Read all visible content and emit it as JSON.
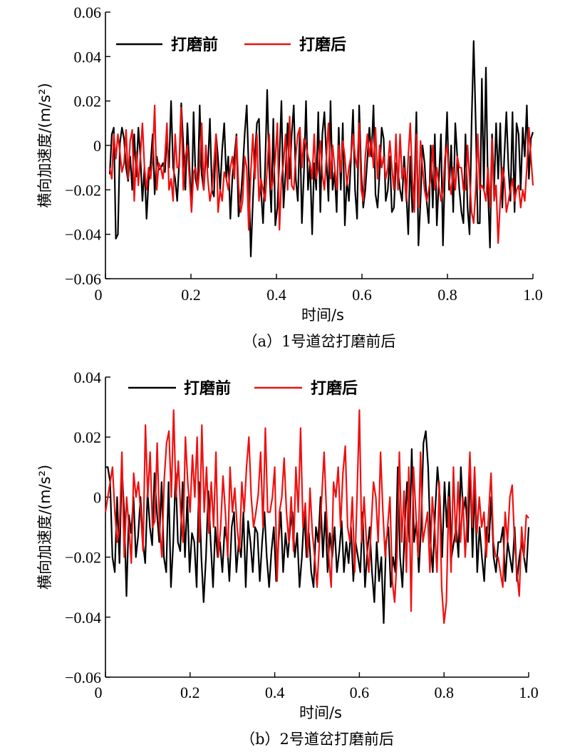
{
  "chart_data": [
    {
      "type": "line",
      "caption": "（a）1号道岔打磨前后",
      "xlabel": "时间/s",
      "ylabel": "横向加速度/(m/s²)",
      "xlim": [
        0,
        1.0
      ],
      "ylim": [
        -0.06,
        0.06
      ],
      "xticks": [
        "0",
        "0.2",
        "0.4",
        "0.6",
        "0.8",
        "1.0"
      ],
      "yticks": [
        "0.06",
        "0.04",
        "0.02",
        "0",
        "−0.02",
        "−0.04",
        "−0.06"
      ],
      "grid": false,
      "legend_position": "top",
      "series": [
        {
          "name": "打磨前",
          "color": "#000000",
          "x_start": 0.01,
          "x_end": 1.0,
          "values": [
            -0.013,
            0.005,
            0.008,
            -0.042,
            -0.04,
            0.001,
            0.008,
            0.003,
            -0.01,
            -0.016,
            -0.005,
            -0.02,
            0.005,
            -0.014,
            0.008,
            -0.005,
            -0.025,
            -0.01,
            -0.033,
            -0.016,
            -0.008,
            0.005,
            -0.022,
            -0.005,
            -0.011,
            -0.01,
            -0.008,
            -0.012,
            0.004,
            -0.01,
            0.02,
            -0.01,
            -0.015,
            -0.025,
            -0.007,
            0.019,
            0.0,
            -0.02,
            0.01,
            -0.01,
            -0.028,
            0.015,
            -0.015,
            -0.02,
            0.018,
            -0.013,
            -0.02,
            -0.005,
            -0.01,
            0.012,
            -0.02,
            -0.023,
            0.005,
            -0.006,
            -0.02,
            -0.002,
            0.01,
            -0.015,
            -0.005,
            -0.033,
            -0.014,
            -0.005,
            0.005,
            -0.032,
            -0.025,
            -0.012,
            0.005,
            0.018,
            -0.011,
            -0.05,
            -0.025,
            -0.005,
            0.01,
            0.012,
            -0.02,
            -0.035,
            -0.01,
            0.025,
            -0.01,
            -0.03,
            0.012,
            -0.036,
            -0.028,
            -0.006,
            0.02,
            -0.028,
            -0.012,
            0.01,
            -0.015,
            0.005,
            0.018,
            -0.015,
            -0.025,
            0.008,
            -0.035,
            -0.012,
            0.02,
            -0.02,
            -0.008,
            -0.04,
            -0.008,
            -0.02,
            0.015,
            -0.03,
            0.005,
            0.015,
            -0.006,
            -0.025,
            0.02,
            -0.02,
            -0.012,
            -0.03,
            0.008,
            -0.02,
            0.01,
            -0.036,
            -0.015,
            -0.025,
            -0.006,
            0.016,
            -0.02,
            -0.033,
            0.018,
            -0.012,
            -0.028,
            -0.02,
            -0.006,
            0.008,
            -0.005,
            0.018,
            -0.022,
            -0.028,
            -0.012,
            0.008,
            0.003,
            -0.025,
            -0.02,
            -0.005,
            -0.03,
            -0.028,
            -0.008,
            -0.012,
            -0.02,
            -0.025,
            -0.005,
            -0.02,
            -0.04,
            -0.005,
            -0.03,
            -0.02,
            0.015,
            -0.045,
            -0.025,
            0.0,
            -0.008,
            -0.025,
            -0.035,
            0.0,
            -0.028,
            0.005,
            -0.036,
            -0.015,
            0.005,
            -0.045,
            -0.01,
            0.015,
            -0.02,
            0.0,
            -0.03,
            0.01,
            -0.005,
            -0.02,
            -0.03,
            -0.035,
            0.005,
            -0.028,
            -0.04,
            0.01,
            0.047,
            0.01,
            -0.035,
            -0.035,
            0.03,
            -0.02,
            0.035,
            -0.02,
            -0.046,
            0.005,
            -0.02,
            0.01,
            -0.015,
            0.01,
            -0.028,
            -0.005,
            0.015,
            -0.01,
            -0.025,
            0.015,
            -0.03,
            0.01,
            0.005,
            -0.02,
            0.008,
            -0.005,
            0.018,
            -0.015,
            0.003,
            0.006
          ]
        },
        {
          "name": "打磨后",
          "color": "#ee1111",
          "x_start": 0.01,
          "x_end": 1.0,
          "values": [
            -0.01,
            -0.015,
            0.005,
            -0.006,
            0.005,
            -0.003,
            -0.012,
            -0.008,
            0.007,
            -0.015,
            0.002,
            0.007,
            -0.025,
            -0.003,
            -0.018,
            -0.005,
            0.01,
            -0.01,
            -0.02,
            -0.01,
            -0.015,
            -0.005,
            0.018,
            -0.02,
            -0.008,
            -0.01,
            -0.015,
            -0.005,
            0.01,
            -0.02,
            -0.015,
            -0.025,
            0.005,
            -0.01,
            -0.01,
            0.017,
            -0.02,
            -0.005,
            0.0,
            -0.015,
            -0.03,
            -0.012,
            -0.01,
            -0.02,
            -0.01,
            0.01,
            -0.02,
            0.0,
            -0.015,
            -0.025,
            -0.02,
            -0.008,
            0.005,
            -0.03,
            -0.02,
            -0.025,
            -0.012,
            -0.015,
            -0.02,
            -0.01,
            -0.005,
            -0.015,
            0.004,
            -0.018,
            -0.03,
            -0.025,
            -0.005,
            -0.01,
            -0.038,
            -0.012,
            0.005,
            -0.015,
            0.005,
            -0.025,
            -0.015,
            -0.02,
            -0.025,
            -0.01,
            0.005,
            -0.02,
            -0.015,
            -0.006,
            0.01,
            -0.038,
            -0.015,
            -0.008,
            0.005,
            -0.02,
            0.013,
            -0.018,
            -0.02,
            -0.005,
            0.005,
            0.008,
            -0.01,
            0.003,
            0.0,
            -0.005,
            -0.008,
            -0.015,
            0.005,
            -0.015,
            -0.01,
            0.002,
            -0.013,
            -0.02,
            -0.005,
            0.01,
            -0.015,
            0.0,
            -0.01,
            -0.02,
            0.0,
            -0.012,
            0.002,
            -0.005,
            -0.018,
            -0.01,
            -0.005,
            0.005,
            -0.005,
            -0.01,
            0.01,
            -0.02,
            -0.025,
            -0.005,
            0.005,
            -0.005,
            0.003,
            -0.01,
            0.008,
            -0.015,
            0.0,
            -0.01,
            -0.005,
            -0.015,
            -0.01,
            0.002,
            -0.01,
            -0.02,
            0.005,
            -0.02,
            0.005,
            -0.015,
            -0.01,
            -0.025,
            -0.005,
            0.01,
            -0.015,
            -0.03,
            0.005,
            -0.028,
            0.002,
            -0.01,
            -0.02,
            -0.025,
            -0.02,
            -0.015,
            0.0,
            -0.02,
            -0.01,
            -0.018,
            -0.025,
            -0.02,
            -0.005,
            0.0,
            -0.015,
            -0.022,
            -0.01,
            -0.02,
            -0.005,
            -0.01,
            -0.01,
            -0.02,
            -0.02,
            0.0,
            -0.015,
            -0.03,
            -0.035,
            -0.02,
            0.005,
            -0.02,
            -0.018,
            -0.02,
            -0.025,
            -0.01,
            -0.028,
            0.003,
            -0.025,
            -0.018,
            -0.044,
            -0.025,
            -0.01,
            -0.015,
            -0.03,
            -0.025,
            -0.02,
            -0.015,
            -0.025,
            -0.02,
            -0.018,
            -0.028,
            -0.02,
            -0.025,
            -0.01,
            0.008,
            -0.005,
            -0.018
          ]
        }
      ]
    },
    {
      "type": "line",
      "caption": "（b）2号道岔打磨前后",
      "xlabel": "时间/s",
      "ylabel": "横向加速度/(m/s²)",
      "xlim": [
        0,
        1.0
      ],
      "ylim": [
        -0.06,
        0.04
      ],
      "xticks": [
        "0",
        "0.2",
        "0.4",
        "0.6",
        "0.8",
        "1.0"
      ],
      "yticks": [
        "0.04",
        "0.02",
        "0",
        "−0.02",
        "−0.04",
        "−0.06"
      ],
      "grid": false,
      "legend_position": "top",
      "series": [
        {
          "name": "打磨前",
          "color": "#000000",
          "x_start": 0.0,
          "x_end": 1.0,
          "values": [
            0.01,
            0.01,
            0.005,
            -0.02,
            -0.025,
            0.0,
            -0.022,
            0.01,
            -0.005,
            -0.033,
            -0.006,
            -0.012,
            0.0,
            -0.02,
            -0.013,
            0.0,
            -0.015,
            -0.022,
            0.002,
            -0.01,
            -0.016,
            0.008,
            -0.005,
            -0.015,
            0.005,
            -0.02,
            -0.025,
            0.005,
            -0.03,
            -0.015,
            0.008,
            -0.015,
            -0.018,
            0.005,
            -0.02,
            0.0,
            -0.025,
            -0.012,
            -0.015,
            -0.03,
            0.005,
            -0.02,
            -0.035,
            -0.02,
            0.002,
            -0.015,
            -0.03,
            -0.01,
            -0.02,
            -0.015,
            -0.025,
            -0.01,
            -0.015,
            -0.028,
            -0.01,
            -0.005,
            -0.025,
            -0.015,
            -0.02,
            -0.005,
            -0.03,
            -0.008,
            -0.015,
            -0.025,
            -0.01,
            -0.012,
            -0.028,
            -0.015,
            -0.005,
            -0.02,
            -0.03,
            -0.018,
            -0.01,
            -0.028,
            -0.015,
            -0.005,
            -0.025,
            -0.012,
            -0.02,
            -0.01,
            -0.005,
            -0.02,
            -0.012,
            -0.03,
            -0.02,
            -0.005,
            -0.02,
            -0.012,
            -0.025,
            -0.03,
            -0.01,
            -0.015,
            0.0,
            -0.02,
            -0.005,
            -0.025,
            -0.012,
            -0.02,
            -0.01,
            -0.025,
            -0.018,
            -0.008,
            -0.025,
            -0.015,
            -0.022,
            -0.01,
            -0.028,
            -0.015,
            -0.02,
            -0.025,
            -0.005,
            -0.03,
            -0.018,
            -0.01,
            -0.025,
            -0.035,
            -0.015,
            -0.028,
            -0.02,
            -0.042,
            -0.015,
            -0.01,
            -0.03,
            -0.02,
            -0.025,
            0.01,
            -0.02,
            -0.03,
            -0.01,
            0.005,
            -0.015,
            0.016,
            -0.015,
            -0.008,
            -0.025,
            -0.01,
            0.018,
            0.022,
            0.01,
            -0.015,
            -0.025,
            -0.005,
            0.01,
            0.0,
            -0.02,
            0.005,
            -0.01,
            0.005,
            -0.02,
            -0.015,
            -0.01,
            -0.02,
            0.01,
            -0.005,
            0.0,
            -0.015,
            0.01,
            -0.02,
            0.005,
            -0.025,
            -0.01,
            -0.02,
            -0.028,
            -0.01,
            -0.015,
            0.0,
            -0.02,
            -0.025,
            -0.015,
            -0.015,
            -0.01,
            -0.028,
            -0.015,
            -0.02,
            -0.025,
            -0.01,
            -0.028,
            -0.02,
            -0.015,
            -0.02,
            -0.025,
            -0.01
          ]
        },
        {
          "name": "打磨后",
          "color": "#ee1111",
          "x_start": 0.0,
          "x_end": 1.0,
          "values": [
            -0.005,
            0.0,
            0.005,
            0.01,
            -0.005,
            -0.015,
            -0.01,
            0.015,
            -0.02,
            0.0,
            -0.01,
            -0.022,
            0.008,
            0.0,
            0.005,
            -0.005,
            -0.018,
            0.024,
            0.0,
            0.015,
            -0.01,
            -0.008,
            0.018,
            -0.01,
            -0.02,
            0.006,
            0.018,
            0.022,
            0.0,
            0.029,
            0.0,
            0.012,
            -0.005,
            -0.015,
            0.02,
            0.005,
            -0.005,
            0.014,
            0.0,
            0.02,
            -0.015,
            0.024,
            -0.005,
            0.01,
            -0.012,
            0.005,
            -0.01,
            0.015,
            -0.02,
            -0.01,
            0.007,
            -0.005,
            -0.02,
            0.01,
            -0.005,
            0.003,
            -0.01,
            -0.018,
            0.005,
            -0.005,
            0.01,
            0.02,
            0.0,
            -0.01,
            -0.005,
            0.001,
            0.015,
            -0.01,
            0.023,
            -0.005,
            -0.005,
            0.0,
            0.01,
            -0.028,
            -0.005,
            0.0,
            0.013,
            -0.005,
            -0.015,
            0.0,
            -0.018,
            0.01,
            -0.005,
            0.023,
            -0.01,
            -0.002,
            -0.02,
            0.003,
            -0.012,
            -0.02,
            -0.03,
            -0.015,
            0.0,
            0.015,
            -0.005,
            -0.02,
            -0.03,
            0.005,
            0.0,
            0.01,
            -0.01,
            0.008,
            0.017,
            -0.01,
            -0.015,
            0.0,
            -0.025,
            0.0,
            0.029,
            -0.015,
            0.0,
            -0.015,
            -0.025,
            -0.01,
            0.005,
            0.0,
            -0.015,
            0.015,
            -0.005,
            -0.02,
            -0.01,
            0.0,
            -0.028,
            -0.035,
            -0.02,
            0.015,
            -0.015,
            0.002,
            -0.025,
            0.01,
            -0.038,
            0.01,
            -0.005,
            -0.02,
            0.015,
            -0.015,
            -0.01,
            -0.005,
            -0.025,
            0.0,
            -0.01,
            -0.025,
            0.005,
            -0.03,
            -0.042,
            -0.035,
            0.0,
            -0.025,
            0.01,
            -0.015,
            0.005,
            -0.015,
            0.0,
            -0.02,
            -0.005,
            0.015,
            -0.01,
            0.01,
            -0.012,
            0.0,
            -0.01,
            -0.005,
            -0.02,
            -0.005,
            0.008,
            -0.015,
            -0.02,
            -0.02,
            -0.025,
            -0.03,
            -0.005,
            -0.015,
            0.0,
            0.004,
            -0.015,
            -0.025,
            -0.033,
            -0.01,
            -0.02,
            -0.006,
            -0.007
          ]
        }
      ]
    }
  ]
}
